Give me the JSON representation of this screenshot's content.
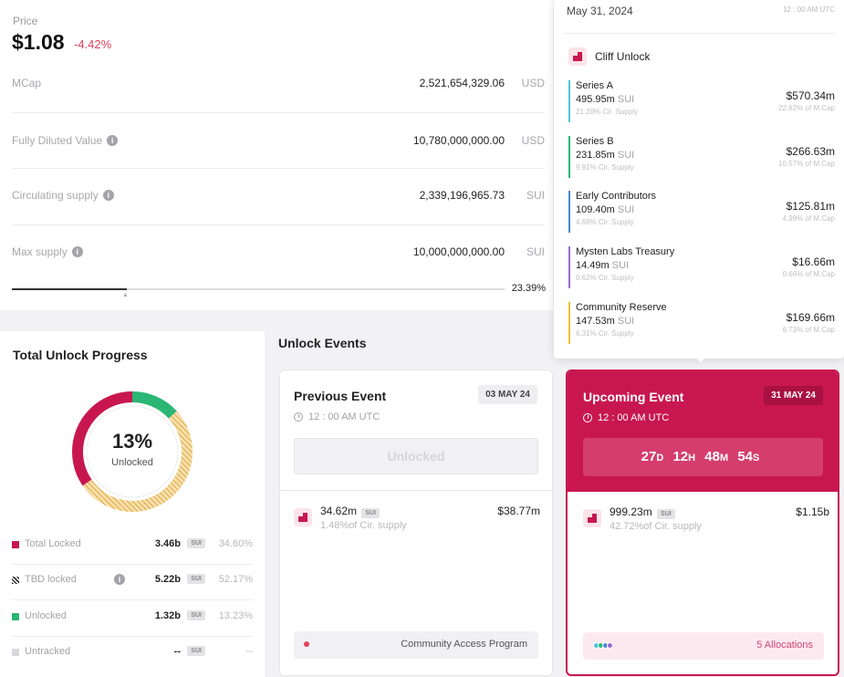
{
  "price": {
    "label": "Price",
    "value": "$1.08",
    "change": "-4.42%",
    "change_color": "#e2405a"
  },
  "metrics": [
    {
      "label": "MCap",
      "value": "2,521,654,329.06",
      "unit": "USD",
      "info": false
    },
    {
      "label": "Fully Diluted Value",
      "value": "10,780,000,000.00",
      "unit": "USD",
      "info": true
    },
    {
      "label": "Circulating supply",
      "value": "2,339,196,965.73",
      "unit": "SUI",
      "info": true
    },
    {
      "label": "Max supply",
      "value": "10,000,000,000.00",
      "unit": "SUI",
      "info": true
    }
  ],
  "supply_progress": {
    "percent_label": "23.39%",
    "fraction": 0.2339
  },
  "tooltip": {
    "date": "May 31, 2024",
    "time": "12 : 00 AM UTC",
    "header": "Cliff Unlock",
    "items": [
      {
        "name": "Series A",
        "amount": "495.95m",
        "unit": "SUI",
        "circ": "21.20% Cir. Supply",
        "usd": "$570.34m",
        "mcap": "22.62% of M.Cap",
        "color": "#4fc3d6"
      },
      {
        "name": "Series B",
        "amount": "231.85m",
        "unit": "SUI",
        "circ": "9.91% Cir. Supply",
        "usd": "$266.63m",
        "mcap": "10.57% of M.Cap",
        "color": "#2bb673"
      },
      {
        "name": "Early Contributors",
        "amount": "109.40m",
        "unit": "SUI",
        "circ": "4.68% Cir. Supply",
        "usd": "$125.81m",
        "mcap": "4.99% of M.Cap",
        "color": "#4a86d8"
      },
      {
        "name": "Mysten Labs Treasury",
        "amount": "14.49m",
        "unit": "SUI",
        "circ": "0.62% Cir. Supply",
        "usd": "$16.66m",
        "mcap": "0.66% of M.Cap",
        "color": "#9b6ad0"
      },
      {
        "name": "Community Reserve",
        "amount": "147.53m",
        "unit": "SUI",
        "circ": "6.31% Cir. Supply",
        "usd": "$169.66m",
        "mcap": "6.73% of M.Cap",
        "color": "#e8c13a"
      }
    ]
  },
  "progress": {
    "title": "Total Unlock Progress",
    "center_pct": "13%",
    "center_label": "Unlocked",
    "legend": [
      {
        "label": "Total Locked",
        "value": "3.46b",
        "unit": "SUI",
        "pct": "34.60%",
        "color": "#c8174f",
        "info": false
      },
      {
        "label": "TBD locked",
        "value": "5.22b",
        "unit": "SUI",
        "pct": "52.17%",
        "color": "#333333",
        "info": true
      },
      {
        "label": "Unlocked",
        "value": "1.32b",
        "unit": "SUI",
        "pct": "13.23%",
        "color": "#2bb673",
        "info": false
      },
      {
        "label": "Untracked",
        "value": "--",
        "unit": "SUI",
        "pct": "--",
        "color": "#d8d8dc",
        "info": false
      }
    ],
    "donut": {
      "locked": 34.6,
      "tbd": 52.17,
      "unlocked": 13.23
    }
  },
  "events": {
    "title": "Unlock Events",
    "previous": {
      "name": "Previous Event",
      "date": "03 MAY 24",
      "time": "12 : 00 AM UTC",
      "status": "Unlocked",
      "amount": "34.62m",
      "unit": "SUI",
      "circ": "1.48%of Cir. supply",
      "usd": "$38.77m",
      "footer": "Community Access Program"
    },
    "upcoming": {
      "name": "Upcoming Event",
      "date": "31 MAY 24",
      "time": "12 : 00 AM UTC",
      "countdown": {
        "d": "27",
        "d_unit": "D",
        "h": "12",
        "h_unit": "H",
        "m": "48",
        "m_unit": "M",
        "s": "54",
        "s_unit": "S"
      },
      "amount": "999.23m",
      "unit": "SUI",
      "circ": "42.72%of Cir. supply",
      "usd": "$1.15b",
      "footer": "5 Allocations"
    }
  }
}
